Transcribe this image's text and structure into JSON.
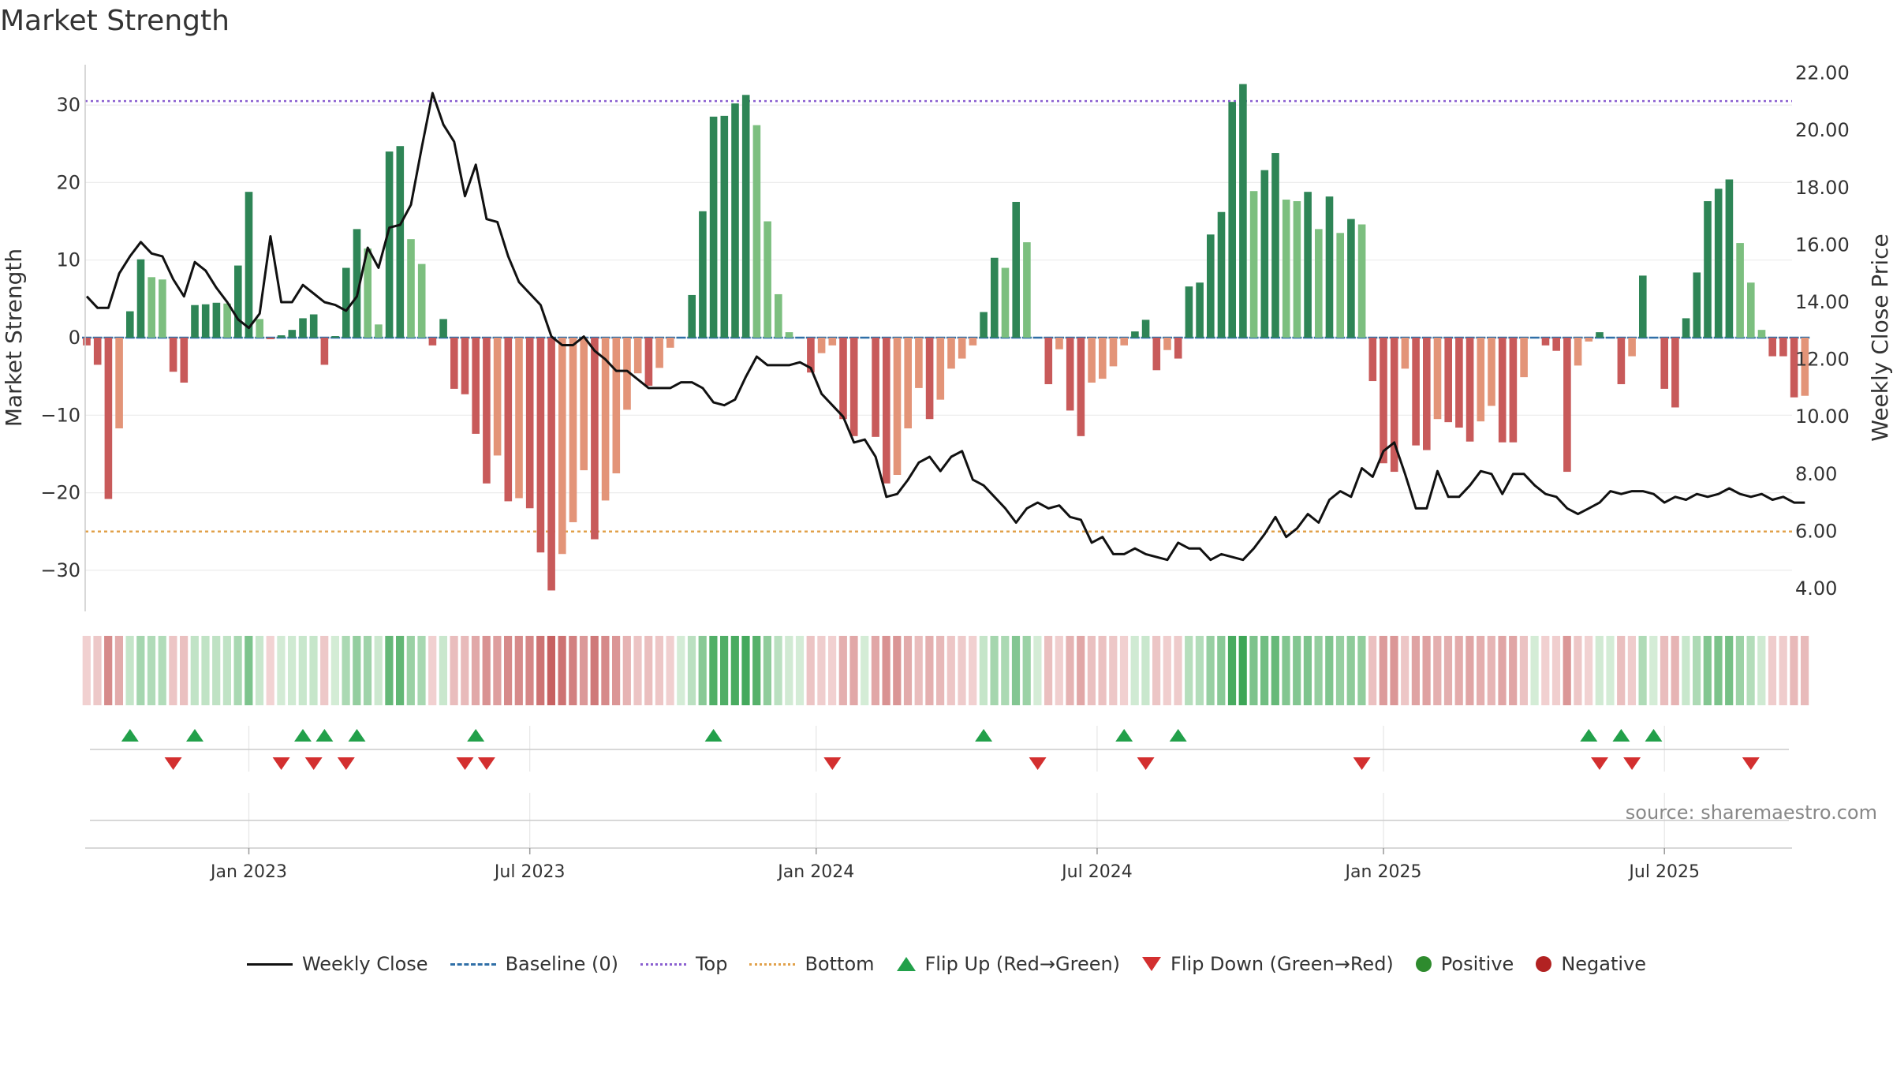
{
  "chart_data": {
    "type": "bar",
    "title": "Market Strength",
    "ylabel_left": "Market Strength",
    "ylabel_right": "Weekly Close Price",
    "ylim_left": [
      -35,
      35
    ],
    "ylim_right": [
      3.0,
      22.5
    ],
    "yticks_left": [
      30,
      20,
      10,
      0,
      -10,
      -20,
      -30
    ],
    "ytick_labels_left": [
      "30",
      "20",
      "10",
      "0",
      "−10",
      "−20",
      "−30"
    ],
    "yticks_right": [
      4,
      6,
      8,
      10,
      12,
      14,
      16,
      18,
      20,
      22
    ],
    "ytick_labels_right": [
      "4.00",
      "6.00",
      "8.00",
      "10.00",
      "12.00",
      "14.00",
      "16.00",
      "18.00",
      "20.00",
      "22.00"
    ],
    "x_range_weeks": [
      0,
      160
    ],
    "xticks": [
      {
        "label": "Jan 2023",
        "week": 15
      },
      {
        "label": "Jul 2023",
        "week": 41
      },
      {
        "label": "Jan 2024",
        "week": 67.5
      },
      {
        "label": "Jul 2024",
        "week": 93.5
      },
      {
        "label": "Jan 2025",
        "week": 120
      },
      {
        "label": "Jul 2025",
        "week": 146
      }
    ],
    "top_level": 30.5,
    "bottom_level": -25,
    "baseline": 0,
    "strength": [
      -1,
      -3.5,
      -20.8,
      -11.7,
      3.4,
      10.1,
      7.8,
      7.5,
      -4.4,
      -5.8,
      4.2,
      4.3,
      4.5,
      4.4,
      9.3,
      18.8,
      2.4,
      -0.2,
      0.3,
      1,
      2.5,
      3,
      -3.5,
      0.2,
      9,
      14,
      11.5,
      1.7,
      24,
      24.7,
      12.7,
      9.5,
      -1,
      2.4,
      -6.6,
      -7.3,
      -12.4,
      -18.8,
      -15.2,
      -21.1,
      -20.7,
      -22,
      -27.7,
      -32.6,
      -27.9,
      -23.8,
      -17.1,
      -26,
      -21,
      -17.5,
      -9.3,
      -4.6,
      -6.2,
      -3.9,
      -1.3,
      0,
      5.5,
      16.3,
      28.5,
      28.6,
      30.2,
      31.3,
      27.4,
      15,
      5.6,
      0.7,
      0,
      -4.5,
      -2,
      -1,
      -10.5,
      -12.7,
      0,
      -12.8,
      -18.8,
      -17.7,
      -11.7,
      -6.5,
      -10.5,
      -8,
      -4,
      -2.7,
      -1,
      3.3,
      10.3,
      9,
      17.5,
      12.3,
      0,
      -6,
      -1.5,
      -9.4,
      -12.7,
      -5.8,
      -5.3,
      -3.7,
      -1,
      0.8,
      2.3,
      -4.2,
      -1.6,
      -2.7,
      6.6,
      7.1,
      13.3,
      16.2,
      30.4,
      32.7,
      18.9,
      21.6,
      23.8,
      17.8,
      17.6,
      18.8,
      14,
      18.2,
      13.5,
      15.3,
      14.6,
      -5.6,
      -16.2,
      -17.3,
      -4,
      -13.9,
      -14.5,
      -10.5,
      -10.9,
      -11.6,
      -13.4,
      -10.8,
      -8.8,
      -13.5,
      -13.5,
      -5.1,
      0,
      -1,
      -1.7,
      -17.3,
      -3.6,
      -0.5,
      0.7,
      0,
      -6,
      -2.4,
      8,
      0,
      -6.6,
      -9,
      2.5,
      8.4,
      17.6,
      19.2,
      20.4,
      12.2,
      7.1,
      1,
      -2.4,
      -2.4,
      -7.7,
      -7.5
    ],
    "weekly_close": [
      14.2,
      13.8,
      13.8,
      15,
      15.6,
      16.1,
      15.7,
      15.6,
      14.8,
      14.2,
      15.4,
      15.1,
      14.5,
      14,
      13.4,
      13.1,
      13.6,
      16.3,
      14,
      14,
      14.6,
      14.3,
      14,
      13.9,
      13.7,
      14.2,
      15.9,
      15.2,
      16.6,
      16.7,
      17.4,
      19.4,
      21.3,
      20.2,
      19.6,
      17.7,
      18.8,
      16.9,
      16.8,
      15.6,
      14.7,
      14.3,
      13.9,
      12.8,
      12.5,
      12.5,
      12.8,
      12.3,
      12,
      11.6,
      11.6,
      11.3,
      11,
      11,
      11,
      11.2,
      11.2,
      11,
      10.5,
      10.4,
      10.6,
      11.4,
      12.1,
      11.8,
      11.8,
      11.8,
      11.9,
      11.7,
      10.8,
      10.4,
      10,
      9.1,
      9.2,
      8.6,
      7.2,
      7.3,
      7.8,
      8.4,
      8.6,
      8.1,
      8.6,
      8.8,
      7.8,
      7.6,
      7.2,
      6.8,
      6.3,
      6.8,
      7,
      6.8,
      6.9,
      6.5,
      6.4,
      5.6,
      5.8,
      5.2,
      5.2,
      5.4,
      5.2,
      5.1,
      5,
      5.6,
      5.4,
      5.4,
      5,
      5.2,
      5.1,
      5,
      5.4,
      5.9,
      6.5,
      5.8,
      6.1,
      6.6,
      6.3,
      7.1,
      7.4,
      7.2,
      8.2,
      7.9,
      8.8,
      9.1,
      8,
      6.8,
      6.8,
      8.1,
      7.2,
      7.2,
      7.6,
      8.1,
      8,
      7.3,
      8,
      8,
      7.6,
      7.3,
      7.2,
      6.8,
      6.6,
      6.8,
      7,
      7.4,
      7.3,
      7.4,
      7.4,
      7.3,
      7.0,
      7.2,
      7.1,
      7.3,
      7.2,
      7.3,
      7.5,
      7.3,
      7.2,
      7.3,
      7.1,
      7.2,
      7.0,
      7.0
    ],
    "flip_up_weeks": [
      4,
      10,
      20,
      22,
      25,
      36,
      58,
      83,
      96,
      101,
      139,
      142,
      145
    ],
    "flip_down_weeks": [
      8,
      18,
      21,
      24,
      35,
      37,
      69,
      88,
      98,
      118,
      140,
      143,
      154
    ],
    "series": [
      {
        "name": "Weekly Close",
        "color": "#111111"
      },
      {
        "name": "Baseline (0)",
        "color": "#2f6fa7"
      },
      {
        "name": "Top",
        "color": "#8a5fd0"
      },
      {
        "name": "Bottom",
        "color": "#e1a14a"
      },
      {
        "name": "Flip Up (Red→Green)",
        "color": "#22a04a"
      },
      {
        "name": "Flip Down (Green→Red)",
        "color": "#d32f2f"
      },
      {
        "name": "Positive",
        "color": "#2e8b2e"
      },
      {
        "name": "Negative",
        "color": "#b22222"
      }
    ]
  },
  "legend": {
    "weekly_close": "Weekly Close",
    "baseline": "Baseline (0)",
    "top": "Top",
    "bottom": "Bottom",
    "flip_up": "Flip Up (Red→Green)",
    "flip_down": "Flip Down (Green→Red)",
    "positive": "Positive",
    "negative": "Negative"
  },
  "source": "source: sharemaestro.com"
}
